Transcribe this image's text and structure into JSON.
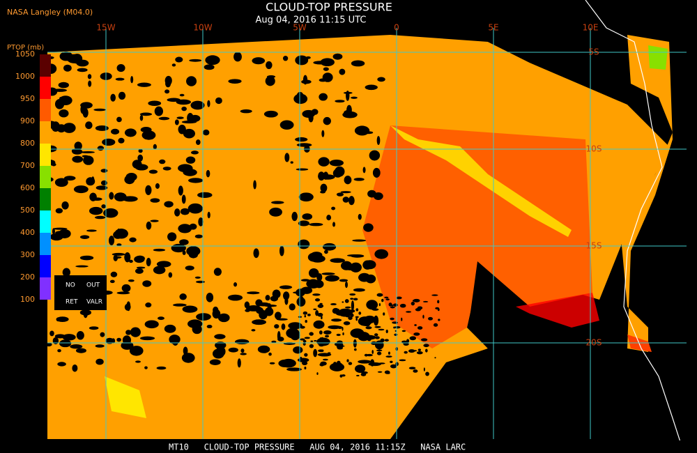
{
  "header": {
    "source": "NASA Langley (M04.0)",
    "title": "CLOUD-TOP PRESSURE",
    "subtitle": "Aug 04, 2016 11:15 UTC"
  },
  "legend": {
    "title": "PTOP (mb)",
    "labels": [
      "1050",
      "1000",
      "950",
      "900",
      "800",
      "700",
      "600",
      "500",
      "400",
      "300",
      "200",
      "100"
    ],
    "colors": [
      "#5a0000",
      "#ff0000",
      "#ff5a00",
      "#ffa500",
      "#ffe600",
      "#88e000",
      "#008000",
      "#00ffff",
      "#0090ff",
      "#0000ff",
      "#8030ff"
    ],
    "notes": [
      "NO",
      "OUT",
      "RET",
      "VALR"
    ]
  },
  "map": {
    "longitude_labels": [
      "15W",
      "10W",
      "5W",
      "0",
      "5E",
      "10E"
    ],
    "latitude_labels": [
      "5S",
      "10S",
      "15S",
      "20S"
    ]
  },
  "footer": "MT10   CLOUD-TOP PRESSURE   AUG 04, 2016 11:15Z   NASA LARC"
}
